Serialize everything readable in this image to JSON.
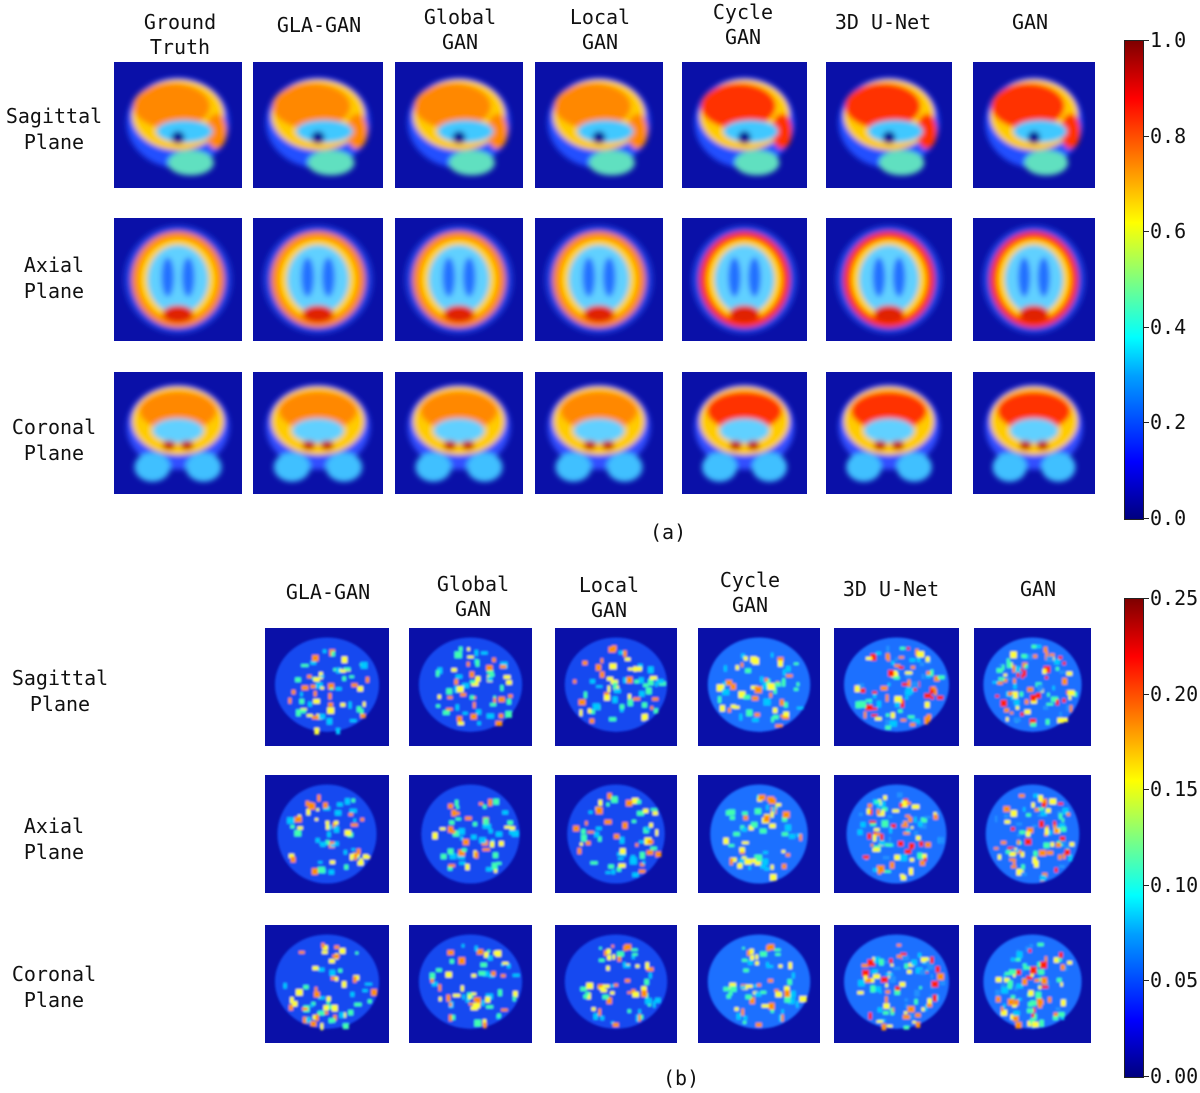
{
  "panel_a": {
    "caption": "(a)",
    "columns": [
      "Ground\nTruth",
      "GLA-GAN",
      "Global\nGAN",
      "Local\nGAN",
      "Cycle\nGAN",
      "3D U-Net",
      "GAN"
    ],
    "rows": [
      "Sagittal\nPlane",
      "Axial\nPlane",
      "Coronal\nPlane"
    ],
    "colorbar": {
      "min": 0.0,
      "max": 1.0,
      "ticks": [
        "0.0",
        "0.2",
        "0.4",
        "0.6",
        "0.8",
        "1.0"
      ]
    }
  },
  "panel_b": {
    "caption": "(b)",
    "columns": [
      "GLA-GAN",
      "Global\nGAN",
      "Local\nGAN",
      "Cycle\nGAN",
      "3D U-Net",
      "GAN"
    ],
    "rows": [
      "Sagittal\nPlane",
      "Axial\nPlane",
      "Coronal\nPlane"
    ],
    "colorbar": {
      "min": 0.0,
      "max": 0.25,
      "ticks": [
        "0.00",
        "0.05",
        "0.10",
        "0.15",
        "0.20",
        "0.25"
      ]
    }
  },
  "colors": {
    "cmap": [
      "#00007f",
      "#0000ff",
      "#00ffff",
      "#ffff00",
      "#ff0000",
      "#7f0000"
    ],
    "background": "#0a10a8"
  }
}
